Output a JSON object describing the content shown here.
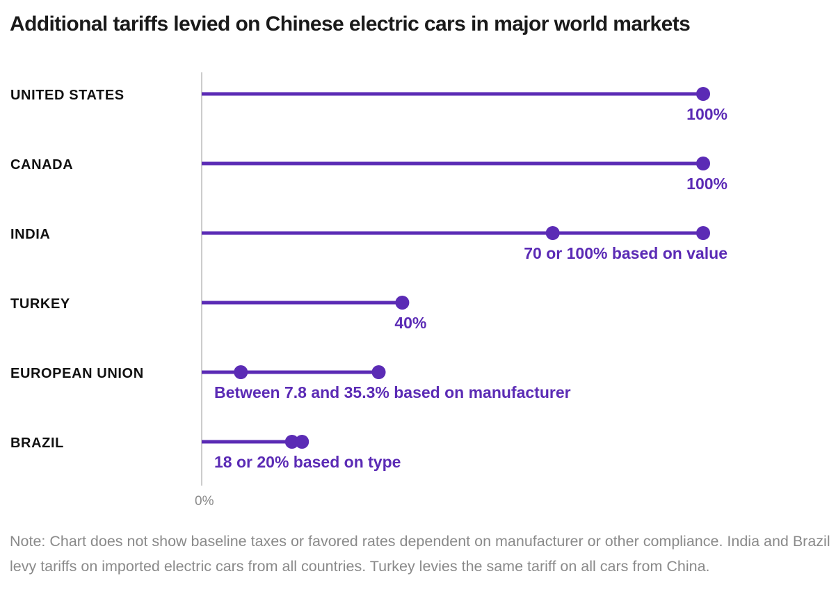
{
  "colors": {
    "accent": "#5b2bb5",
    "axis": "#bbbbbb",
    "category_text": "#111111",
    "note_text": "#8a8a8a"
  },
  "chart_data": {
    "type": "dot-range",
    "title": "Additional tariffs levied on Chinese electric cars in major world markets",
    "x_tick_label": "0%",
    "xlim": [
      0,
      100
    ],
    "categories": [
      "UNITED STATES",
      "CANADA",
      "INDIA",
      "TURKEY",
      "EUROPEAN UNION",
      "BRAZIL"
    ],
    "rows": [
      {
        "category": "UNITED STATES",
        "values": [
          100
        ],
        "label": "100%",
        "label_align": "end"
      },
      {
        "category": "CANADA",
        "values": [
          100
        ],
        "label": "100%",
        "label_align": "end"
      },
      {
        "category": "INDIA",
        "values": [
          70,
          100
        ],
        "label": "70 or 100% based on value",
        "label_align": "end"
      },
      {
        "category": "TURKEY",
        "values": [
          40
        ],
        "label": "40%",
        "label_align": "end"
      },
      {
        "category": "EUROPEAN UNION",
        "values": [
          7.8,
          35.3
        ],
        "label": "Between 7.8 and 35.3% based on manufacturer",
        "label_align": "start"
      },
      {
        "category": "BRAZIL",
        "values": [
          18,
          20
        ],
        "label": "18 or 20% based on type",
        "label_align": "start"
      }
    ],
    "note": "Note: Chart does not show baseline taxes or favored rates dependent on manufacturer or other compliance. India and Brazil levy tariffs on imported electric cars from all countries. Turkey levies the same tariff on all cars from China."
  }
}
